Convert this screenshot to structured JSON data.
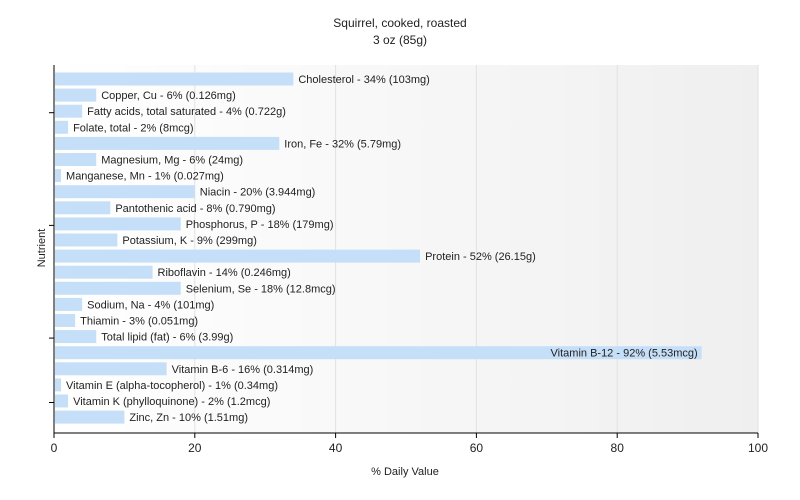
{
  "chart_data": {
    "type": "bar",
    "orientation": "horizontal",
    "title": "Squirrel, cooked, roasted",
    "subtitle": "3 oz (85g)",
    "xlabel": "% Daily Value",
    "ylabel": "Nutrient",
    "xlim": [
      0,
      100
    ],
    "xticks": [
      0,
      20,
      40,
      60,
      80,
      100
    ],
    "grid": true,
    "bar_color": "#c5dff8",
    "categories": [
      "Cholesterol",
      "Copper, Cu",
      "Fatty acids, total saturated",
      "Folate, total",
      "Iron, Fe",
      "Magnesium, Mg",
      "Manganese, Mn",
      "Niacin",
      "Pantothenic acid",
      "Phosphorus, P",
      "Potassium, K",
      "Protein",
      "Riboflavin",
      "Selenium, Se",
      "Sodium, Na",
      "Thiamin",
      "Total lipid (fat)",
      "Vitamin B-12",
      "Vitamin B-6",
      "Vitamin E (alpha-tocopherol)",
      "Vitamin K (phylloquinone)",
      "Zinc, Zn"
    ],
    "values": [
      34,
      6,
      4,
      2,
      32,
      6,
      1,
      20,
      8,
      18,
      9,
      52,
      14,
      18,
      4,
      3,
      6,
      92,
      16,
      1,
      2,
      10
    ],
    "labels": [
      "Cholesterol - 34% (103mg)",
      "Copper, Cu - 6% (0.126mg)",
      "Fatty acids, total saturated - 4% (0.722g)",
      "Folate, total - 2% (8mcg)",
      "Iron, Fe - 32% (5.79mg)",
      "Magnesium, Mg - 6% (24mg)",
      "Manganese, Mn - 1% (0.027mg)",
      "Niacin - 20% (3.944mg)",
      "Pantothenic acid - 8% (0.790mg)",
      "Phosphorus, P - 18% (179mg)",
      "Potassium, K - 9% (299mg)",
      "Protein - 52% (26.15g)",
      "Riboflavin - 14% (0.246mg)",
      "Selenium, Se - 18% (12.8mcg)",
      "Sodium, Na - 4% (101mg)",
      "Thiamin - 3% (0.051mg)",
      "Total lipid (fat) - 6% (3.99g)",
      "Vitamin B-12 - 92% (5.53mcg)",
      "Vitamin B-6 - 16% (0.314mg)",
      "Vitamin E (alpha-tocopherol) - 1% (0.34mg)",
      "Vitamin K (phylloquinone) - 2% (1.2mcg)",
      "Zinc, Zn - 10% (1.51mg)"
    ]
  }
}
